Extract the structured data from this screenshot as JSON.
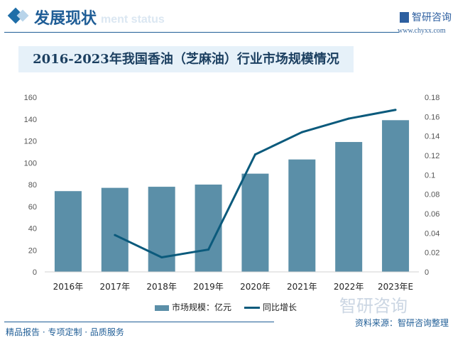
{
  "header": {
    "title": "发展现状",
    "ghost_text": "ment status",
    "logo_text": "智研咨询",
    "logo_url": "www.chyxx.com"
  },
  "footer": {
    "left": "精品报告 · 专项定制 · 品质服务",
    "source": "资料来源：智研咨询整理",
    "watermark": "智研咨询"
  },
  "colors": {
    "bar": "#5b8fa8",
    "line": "#0b5a7c",
    "accent": "#1f5d96"
  },
  "chart_data": {
    "type": "bar+line",
    "title": "2016-2023年我国香油（芝麻油）行业市场规模情况",
    "categories": [
      "2016年",
      "2017年",
      "2018年",
      "2019年",
      "2020年",
      "2021年",
      "2022年",
      "2023年E"
    ],
    "series": [
      {
        "name": "市场规模：亿元",
        "type": "bar",
        "axis": "left",
        "values": [
          74,
          77,
          78,
          80,
          90,
          103,
          119,
          139
        ]
      },
      {
        "name": "同比增长",
        "type": "line",
        "axis": "right",
        "values": [
          null,
          0.038,
          0.015,
          0.023,
          0.121,
          0.144,
          0.158,
          0.167
        ]
      }
    ],
    "ylim": [
      0,
      160
    ],
    "yticks": [
      0,
      20,
      40,
      60,
      80,
      100,
      120,
      140,
      160
    ],
    "y2lim": [
      0,
      0.18
    ],
    "y2ticks": [
      "0",
      "0.02",
      "0.04",
      "0.06",
      "0.08",
      "0.1",
      "0.12",
      "0.14",
      "0.16",
      "0.18"
    ],
    "legend": "bottom",
    "grid": false
  }
}
